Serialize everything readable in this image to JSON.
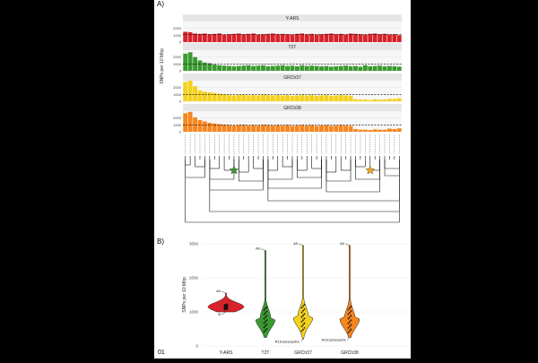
{
  "page_number": "01",
  "chart_data": [
    {
      "type": "bar",
      "panel_label": "A)",
      "ylabel": "SNPs per 10 Mbp",
      "ylim": [
        0,
        3000
      ],
      "y_ticks": [
        "0",
        "1000",
        "2000"
      ],
      "categories_count": 45,
      "series": [
        {
          "name": "Y-ARS",
          "color": "#d8232a",
          "reference": 1100,
          "values": [
            1500,
            1450,
            1250,
            1200,
            1250,
            1150,
            1200,
            1250,
            1100,
            1150,
            1200,
            1250,
            1150,
            1200,
            1250,
            1100,
            1150,
            1200,
            1250,
            1150,
            1200,
            1150,
            1100,
            1200,
            1250,
            1150,
            1200,
            1100,
            1150,
            1200,
            1250,
            1150,
            1200,
            1100,
            1250,
            1200,
            1150,
            1100,
            1200,
            1250,
            1150,
            1200,
            1100,
            1150,
            1000
          ]
        },
        {
          "name": "T2T",
          "color": "#3a9a2f",
          "reference": 1000,
          "values": [
            2500,
            2700,
            2000,
            1500,
            1200,
            1100,
            900,
            800,
            750,
            700,
            650,
            700,
            750,
            800,
            700,
            750,
            800,
            650,
            700,
            750,
            800,
            700,
            750,
            650,
            800,
            700,
            750,
            700,
            650,
            700,
            600,
            650,
            700,
            750,
            650,
            700,
            600,
            800,
            650,
            700,
            750,
            650,
            700,
            650,
            600
          ]
        },
        {
          "name": "GRCh37",
          "color": "#f4d21c",
          "reference": 1000,
          "values": [
            2800,
            3000,
            2200,
            1600,
            1400,
            1300,
            1200,
            1100,
            1000,
            900,
            850,
            900,
            950,
            850,
            900,
            850,
            950,
            900,
            850,
            900,
            850,
            900,
            800,
            850,
            900,
            850,
            900,
            800,
            850,
            900,
            800,
            850,
            900,
            850,
            800,
            300,
            250,
            250,
            200,
            300,
            250,
            250,
            350,
            350,
            450
          ]
        },
        {
          "name": "GRCh38",
          "color": "#f7861e",
          "reference": 1000,
          "values": [
            2700,
            2900,
            2100,
            1700,
            1500,
            1300,
            1200,
            1100,
            1050,
            950,
            900,
            950,
            1000,
            900,
            950,
            900,
            1000,
            950,
            900,
            950,
            900,
            950,
            850,
            900,
            950,
            900,
            950,
            850,
            900,
            950,
            850,
            900,
            950,
            900,
            850,
            400,
            300,
            300,
            250,
            350,
            300,
            300,
            450,
            400,
            500
          ]
        }
      ]
    },
    {
      "type": "violin",
      "panel_label": "B)",
      "ylabel": "SNPs per 10 Mbp",
      "ylim": [
        0,
        3000
      ],
      "y_ticks": [
        "0",
        "1000",
        "2000",
        "3000"
      ],
      "categories": [
        "Y-ARS",
        "T2T",
        "GRCh37",
        "GRCh38"
      ],
      "colors": [
        "#d8232a",
        "#3a9a2f",
        "#f4d21c",
        "#f7861e"
      ],
      "medians": [
        1150,
        800,
        850,
        800
      ],
      "maxima": [
        1550,
        2800,
        2950,
        2950
      ],
      "minima": [
        1000,
        250,
        200,
        250
      ],
      "annotations": [
        {
          "category": "Y-ARS",
          "label": "A0",
          "y": 1550
        },
        {
          "category": "Y-ARS",
          "label": "B",
          "y": 1000
        },
        {
          "category": "T2T",
          "label": "A0",
          "y": 2800
        },
        {
          "category": "GRCh37",
          "label": "A0",
          "y": 2950
        },
        {
          "category": "GRCh37",
          "label": "R1b1a2a1a2b1",
          "y": 200
        },
        {
          "category": "GRCh38",
          "label": "A0",
          "y": 2950
        },
        {
          "category": "GRCh38",
          "label": "R1b1a2a1a2b1",
          "y": 250
        }
      ]
    }
  ]
}
